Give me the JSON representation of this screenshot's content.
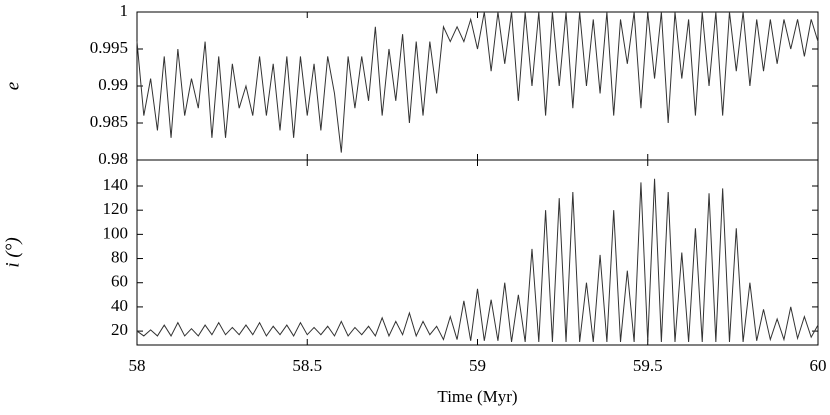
{
  "chart_data": [
    {
      "type": "line",
      "ylabel": "e",
      "x": [
        58,
        58.02,
        58.04,
        58.06,
        58.08,
        58.1,
        58.12,
        58.14,
        58.16,
        58.18,
        58.2,
        58.22,
        58.24,
        58.26,
        58.28,
        58.3,
        58.32,
        58.34,
        58.36,
        58.38,
        58.4,
        58.42,
        58.44,
        58.46,
        58.48,
        58.5,
        58.52,
        58.54,
        58.56,
        58.58,
        58.6,
        58.62,
        58.64,
        58.66,
        58.68,
        58.7,
        58.72,
        58.74,
        58.76,
        58.78,
        58.8,
        58.82,
        58.84,
        58.86,
        58.88,
        58.9,
        58.92,
        58.94,
        58.96,
        58.98,
        59,
        59.02,
        59.04,
        59.06,
        59.08,
        59.1,
        59.12,
        59.14,
        59.16,
        59.18,
        59.2,
        59.22,
        59.24,
        59.26,
        59.28,
        59.3,
        59.32,
        59.34,
        59.36,
        59.38,
        59.4,
        59.42,
        59.44,
        59.46,
        59.48,
        59.5,
        59.52,
        59.54,
        59.56,
        59.58,
        59.6,
        59.62,
        59.64,
        59.66,
        59.68,
        59.7,
        59.72,
        59.74,
        59.76,
        59.78,
        59.8,
        59.82,
        59.84,
        59.86,
        59.88,
        59.9,
        59.92,
        59.94,
        59.96,
        59.98,
        60
      ],
      "series": [
        {
          "color": "#333333",
          "values": [
            0.996,
            0.986,
            0.991,
            0.984,
            0.994,
            0.983,
            0.995,
            0.986,
            0.991,
            0.987,
            0.996,
            0.983,
            0.994,
            0.983,
            0.993,
            0.987,
            0.99,
            0.986,
            0.994,
            0.986,
            0.993,
            0.984,
            0.994,
            0.983,
            0.994,
            0.986,
            0.993,
            0.984,
            0.994,
            0.989,
            0.981,
            0.994,
            0.987,
            0.994,
            0.988,
            0.998,
            0.986,
            0.995,
            0.988,
            0.997,
            0.985,
            0.996,
            0.986,
            0.996,
            0.989,
            0.998,
            0.996,
            0.998,
            0.996,
            0.999,
            0.995,
            1,
            0.992,
            1,
            0.993,
            1,
            0.988,
            1,
            0.99,
            1,
            0.986,
            1,
            0.99,
            1,
            0.987,
            1,
            0.99,
            0.999,
            0.989,
            1,
            0.986,
            0.999,
            0.993,
            1,
            0.987,
            1,
            0.991,
            1,
            0.985,
            1,
            0.991,
            0.999,
            0.986,
            1,
            0.99,
            1,
            0.986,
            1,
            0.992,
            1,
            0.99,
            0.999,
            0.992,
            0.999,
            0.993,
            0.999,
            0.995,
            0.999,
            0.994,
            0.999,
            0.996
          ]
        }
      ],
      "xlim": [
        58,
        60
      ],
      "ylim": [
        0.98,
        1
      ],
      "yticks": [
        0.98,
        0.985,
        0.99,
        0.995,
        1
      ]
    },
    {
      "type": "line",
      "ylabel": "i (°)",
      "xlabel": "Time (Myr)",
      "x": [
        58,
        58.02,
        58.04,
        58.06,
        58.08,
        58.1,
        58.12,
        58.14,
        58.16,
        58.18,
        58.2,
        58.22,
        58.24,
        58.26,
        58.28,
        58.3,
        58.32,
        58.34,
        58.36,
        58.38,
        58.4,
        58.42,
        58.44,
        58.46,
        58.48,
        58.5,
        58.52,
        58.54,
        58.56,
        58.58,
        58.6,
        58.62,
        58.64,
        58.66,
        58.68,
        58.7,
        58.72,
        58.74,
        58.76,
        58.78,
        58.8,
        58.82,
        58.84,
        58.86,
        58.88,
        58.9,
        58.92,
        58.94,
        58.96,
        58.98,
        59,
        59.02,
        59.04,
        59.06,
        59.08,
        59.1,
        59.12,
        59.14,
        59.16,
        59.18,
        59.2,
        59.22,
        59.24,
        59.26,
        59.28,
        59.3,
        59.32,
        59.34,
        59.36,
        59.38,
        59.4,
        59.42,
        59.44,
        59.46,
        59.48,
        59.5,
        59.52,
        59.54,
        59.56,
        59.58,
        59.6,
        59.62,
        59.64,
        59.66,
        59.68,
        59.7,
        59.72,
        59.74,
        59.76,
        59.78,
        59.8,
        59.82,
        59.84,
        59.86,
        59.88,
        59.9,
        59.92,
        59.94,
        59.96,
        59.98,
        60
      ],
      "series": [
        {
          "color": "#333333",
          "values": [
            20,
            16,
            21,
            16,
            25,
            16,
            27,
            16,
            22,
            16,
            25,
            17,
            27,
            17,
            23,
            17,
            25,
            17,
            27,
            16,
            24,
            17,
            25,
            16,
            27,
            17,
            23,
            17,
            24,
            16,
            28,
            16,
            23,
            17,
            24,
            16,
            31,
            16,
            28,
            17,
            35,
            16,
            28,
            17,
            24,
            13,
            32,
            13,
            45,
            12,
            55,
            12,
            46,
            12,
            60,
            11,
            50,
            11,
            88,
            11,
            120,
            11,
            130,
            11,
            135,
            11,
            60,
            11,
            83,
            11,
            120,
            11,
            70,
            11,
            143,
            11,
            146,
            11,
            135,
            11,
            85,
            11,
            105,
            11,
            134,
            11,
            138,
            11,
            105,
            11,
            60,
            12,
            38,
            13,
            30,
            13,
            40,
            14,
            32,
            15,
            25
          ]
        }
      ],
      "xlim": [
        58,
        60
      ],
      "ylim": [
        8.5,
        161.5
      ],
      "yticks": [
        20,
        40,
        60,
        80,
        100,
        120,
        140
      ],
      "xticks": [
        58,
        58.5,
        59,
        59.5,
        60
      ]
    }
  ]
}
